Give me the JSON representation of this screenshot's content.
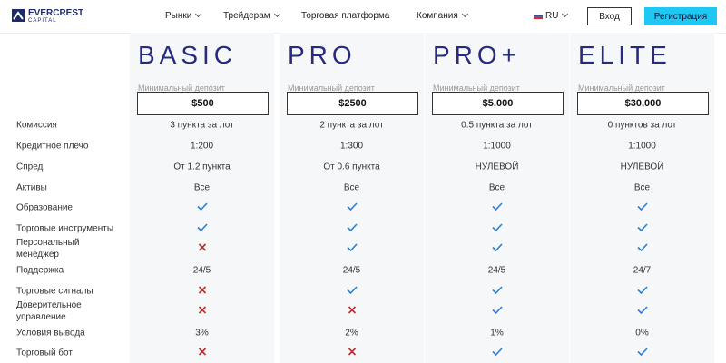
{
  "header": {
    "logo": {
      "title": "EVERCREST",
      "subtitle": "CAPITAL"
    },
    "nav": [
      "Рынки",
      "Трейдерам",
      "Торговая платформа",
      "Компания"
    ],
    "language": "RU",
    "login": "Вход",
    "register": "Регистрация"
  },
  "deposit_label": "Минимальный депозит",
  "rows": [
    "Комиссия",
    "Кредитное плечо",
    "Спред",
    "Активы",
    "Образование",
    "Торговые инструменты",
    "Персональный менеджер",
    "Поддержка",
    "Торговые сигналы",
    "Доверительное управление",
    "Условия вывода",
    "Торговый бот"
  ],
  "plans": [
    {
      "name": "BASIC",
      "deposit": "$500",
      "cells": [
        "3 пункта за лот",
        "1:200",
        "От 1.2 пункта",
        "Все",
        true,
        true,
        false,
        "24/5",
        false,
        false,
        "3%",
        false
      ]
    },
    {
      "name": "PRO",
      "deposit": "$2500",
      "cells": [
        "2 пункта за лот",
        "1:300",
        "От 0.6 пункта",
        "Все",
        true,
        true,
        true,
        "24/5",
        true,
        false,
        "2%",
        false
      ]
    },
    {
      "name": "PRO+",
      "deposit": "$5,000",
      "cells": [
        "0.5 пункта за лот",
        "1:1000",
        "НУЛЕВОЙ",
        "Все",
        true,
        true,
        true,
        "24/5",
        true,
        true,
        "1%",
        true
      ]
    },
    {
      "name": "ELITE",
      "deposit": "$30,000",
      "cells": [
        "0 пунктов за лот",
        "1:1000",
        "НУЛЕВОЙ",
        "Все",
        true,
        true,
        true,
        "24/7",
        true,
        true,
        "0%",
        true
      ]
    }
  ]
}
